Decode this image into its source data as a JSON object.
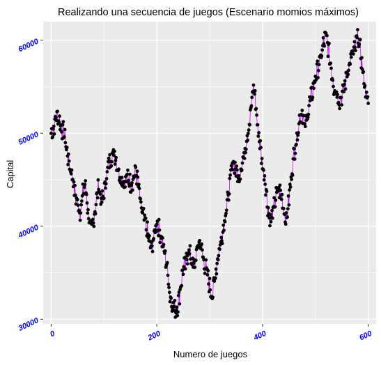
{
  "chart_data": {
    "type": "line",
    "title": "Realizando una secuencia de juegos (Escenario momios máximos)",
    "xlabel": "Numero de juegos",
    "ylabel": "Capital",
    "xlim": [
      -15,
      615
    ],
    "ylim": [
      29500,
      62000
    ],
    "x_ticks": [
      0,
      200,
      400,
      600
    ],
    "x_tick_labels": [
      "0",
      "200",
      "400",
      "600"
    ],
    "y_ticks": [
      30000,
      40000,
      50000,
      60000
    ],
    "y_tick_labels": [
      "30000",
      "40000",
      "50000",
      "60000"
    ],
    "grid": true,
    "panel_background": "#ebebeb",
    "grid_color": "#ffffff",
    "line_color": "#cc00ff",
    "point_color": "#000000",
    "tick_label_color": "#0000ff",
    "anchors": [
      [
        0,
        50000
      ],
      [
        5,
        50500
      ],
      [
        10,
        52000
      ],
      [
        15,
        51500
      ],
      [
        20,
        50500
      ],
      [
        25,
        50000
      ],
      [
        30,
        48000
      ],
      [
        35,
        46500
      ],
      [
        40,
        45500
      ],
      [
        45,
        43500
      ],
      [
        50,
        42500
      ],
      [
        55,
        41500
      ],
      [
        60,
        43500
      ],
      [
        65,
        44500
      ],
      [
        70,
        41500
      ],
      [
        75,
        39500
      ],
      [
        80,
        40500
      ],
      [
        90,
        44500
      ],
      [
        95,
        42500
      ],
      [
        100,
        43500
      ],
      [
        105,
        45500
      ],
      [
        110,
        47000
      ],
      [
        120,
        48000
      ],
      [
        125,
        46500
      ],
      [
        130,
        45500
      ],
      [
        140,
        44500
      ],
      [
        145,
        45500
      ],
      [
        150,
        44500
      ],
      [
        155,
        45000
      ],
      [
        160,
        46000
      ],
      [
        165,
        44500
      ],
      [
        170,
        42000
      ],
      [
        175,
        41000
      ],
      [
        180,
        40000
      ],
      [
        185,
        38500
      ],
      [
        190,
        37500
      ],
      [
        195,
        39000
      ],
      [
        200,
        40500
      ],
      [
        205,
        39500
      ],
      [
        210,
        38500
      ],
      [
        215,
        37000
      ],
      [
        220,
        35500
      ],
      [
        225,
        32500
      ],
      [
        230,
        31500
      ],
      [
        235,
        31000
      ],
      [
        240,
        31500
      ],
      [
        245,
        33500
      ],
      [
        250,
        35500
      ],
      [
        255,
        36000
      ],
      [
        260,
        37500
      ],
      [
        265,
        36500
      ],
      [
        270,
        35500
      ],
      [
        275,
        37000
      ],
      [
        280,
        38500
      ],
      [
        285,
        37500
      ],
      [
        290,
        36000
      ],
      [
        295,
        35000
      ],
      [
        300,
        33500
      ],
      [
        305,
        32500
      ],
      [
        310,
        34500
      ],
      [
        315,
        36500
      ],
      [
        320,
        38000
      ],
      [
        325,
        39500
      ],
      [
        330,
        41500
      ],
      [
        335,
        43000
      ],
      [
        340,
        45500
      ],
      [
        345,
        47000
      ],
      [
        350,
        46000
      ],
      [
        355,
        45000
      ],
      [
        360,
        46500
      ],
      [
        365,
        47500
      ],
      [
        370,
        49500
      ],
      [
        375,
        51000
      ],
      [
        380,
        53500
      ],
      [
        383,
        55000
      ],
      [
        386,
        54000
      ],
      [
        390,
        51000
      ],
      [
        395,
        49000
      ],
      [
        400,
        46500
      ],
      [
        405,
        45000
      ],
      [
        410,
        42000
      ],
      [
        415,
        40500
      ],
      [
        420,
        41500
      ],
      [
        425,
        43000
      ],
      [
        430,
        44000
      ],
      [
        435,
        43500
      ],
      [
        440,
        42000
      ],
      [
        445,
        40500
      ],
      [
        450,
        43000
      ],
      [
        455,
        45500
      ],
      [
        460,
        48000
      ],
      [
        465,
        49500
      ],
      [
        470,
        51500
      ],
      [
        475,
        52500
      ],
      [
        480,
        50500
      ],
      [
        485,
        52000
      ],
      [
        490,
        53500
      ],
      [
        495,
        54500
      ],
      [
        500,
        56000
      ],
      [
        505,
        57000
      ],
      [
        510,
        58000
      ],
      [
        515,
        59500
      ],
      [
        520,
        60500
      ],
      [
        525,
        59000
      ],
      [
        530,
        57000
      ],
      [
        535,
        55000
      ],
      [
        540,
        54500
      ],
      [
        545,
        53500
      ],
      [
        550,
        54000
      ],
      [
        555,
        55000
      ],
      [
        560,
        56500
      ],
      [
        565,
        57500
      ],
      [
        570,
        58500
      ],
      [
        575,
        59000
      ],
      [
        580,
        60500
      ],
      [
        585,
        59000
      ],
      [
        590,
        56500
      ],
      [
        595,
        54500
      ],
      [
        600,
        53000
      ]
    ]
  }
}
